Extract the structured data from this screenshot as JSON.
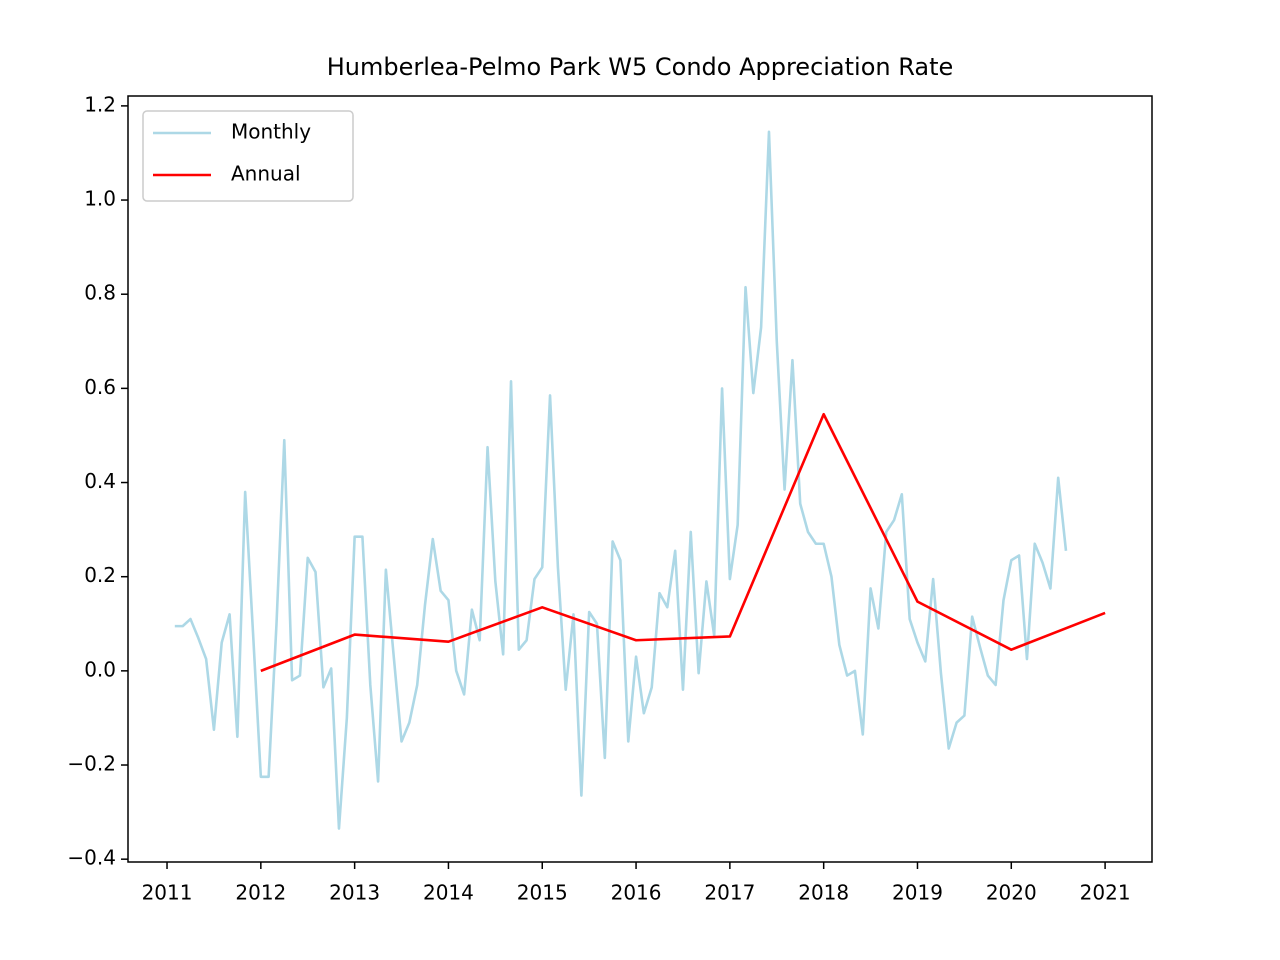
{
  "chart_data": {
    "type": "line",
    "title": "Humberlea-Pelmo Park W5 Condo Appreciation Rate",
    "legend": "upper left",
    "xlim": [
      2010.584,
      2021.5
    ],
    "xticks": [
      2011,
      2012,
      2013,
      2014,
      2015,
      2016,
      2017,
      2018,
      2019,
      2020,
      2021
    ],
    "ylim": [
      -0.406,
      1.221
    ],
    "yticks": [
      {
        "value": -0.4,
        "label": "−0.4"
      },
      {
        "value": -0.2,
        "label": "−0.2"
      },
      {
        "value": 0,
        "label": "0.0"
      },
      0.2,
      0.4,
      0.6,
      0.8,
      {
        "value": 1,
        "label": "1.0"
      },
      1.2
    ],
    "series": [
      {
        "name": "Monthly",
        "color": "#add8e6",
        "x": [
          2011.083,
          2011.167,
          2011.25,
          2011.333,
          2011.417,
          2011.5,
          2011.583,
          2011.667,
          2011.75,
          2011.833,
          2011.917,
          2012,
          2012.083,
          2012.167,
          2012.25,
          2012.333,
          2012.417,
          2012.5,
          2012.583,
          2012.667,
          2012.75,
          2012.833,
          2012.917,
          2013,
          2013.083,
          2013.167,
          2013.25,
          2013.333,
          2013.417,
          2013.5,
          2013.583,
          2013.667,
          2013.75,
          2013.833,
          2013.917,
          2014,
          2014.083,
          2014.167,
          2014.25,
          2014.333,
          2014.417,
          2014.5,
          2014.583,
          2014.667,
          2014.75,
          2014.833,
          2014.917,
          2015,
          2015.083,
          2015.167,
          2015.25,
          2015.333,
          2015.417,
          2015.5,
          2015.583,
          2015.667,
          2015.75,
          2015.833,
          2015.917,
          2016,
          2016.083,
          2016.167,
          2016.25,
          2016.333,
          2016.417,
          2016.5,
          2016.583,
          2016.667,
          2016.75,
          2016.833,
          2016.917,
          2017,
          2017.083,
          2017.167,
          2017.25,
          2017.333,
          2017.417,
          2017.5,
          2017.583,
          2017.667,
          2017.75,
          2017.833,
          2017.917,
          2018,
          2018.083,
          2018.167,
          2018.25,
          2018.333,
          2018.417,
          2018.5,
          2018.583,
          2018.667,
          2018.75,
          2018.833,
          2018.917,
          2019,
          2019.083,
          2019.167,
          2019.25,
          2019.333,
          2019.417,
          2019.5,
          2019.583,
          2019.667,
          2019.75,
          2019.833,
          2019.917,
          2020,
          2020.083,
          2020.167,
          2020.25,
          2020.333,
          2020.417,
          2020.5,
          2020.583
        ],
        "values": [
          0.095,
          0.095,
          0.11,
          0.07,
          0.025,
          -0.125,
          0.06,
          0.12,
          -0.14,
          0.38,
          0.08,
          -0.225,
          -0.225,
          0.1,
          0.49,
          -0.02,
          -0.01,
          0.24,
          0.21,
          -0.035,
          0.005,
          -0.335,
          -0.1,
          0.285,
          0.285,
          -0.03,
          -0.235,
          0.215,
          0.03,
          -0.15,
          -0.11,
          -0.03,
          0.14,
          0.28,
          0.17,
          0.15,
          0.0,
          -0.05,
          0.13,
          0.065,
          0.475,
          0.19,
          0.035,
          0.615,
          0.045,
          0.065,
          0.195,
          0.22,
          0.585,
          0.22,
          -0.04,
          0.12,
          -0.265,
          0.125,
          0.1,
          -0.185,
          0.275,
          0.235,
          -0.15,
          0.03,
          -0.09,
          -0.035,
          0.165,
          0.135,
          0.255,
          -0.04,
          0.295,
          -0.005,
          0.19,
          0.075,
          0.6,
          0.195,
          0.31,
          0.815,
          0.59,
          0.73,
          1.145,
          0.7,
          0.385,
          0.66,
          0.355,
          0.295,
          0.27,
          0.27,
          0.2,
          0.055,
          -0.01,
          0.0,
          -0.135,
          0.175,
          0.09,
          0.295,
          0.32,
          0.375,
          0.11,
          0.06,
          0.02,
          0.195,
          -0.005,
          -0.165,
          -0.11,
          -0.095,
          0.115,
          0.05,
          -0.01,
          -0.03,
          0.15,
          0.235,
          0.245,
          0.025,
          0.27,
          0.23,
          0.175,
          0.41,
          0.255
        ]
      },
      {
        "name": "Annual",
        "color": "#ff0000",
        "x": [
          2012,
          2013,
          2014,
          2015,
          2016,
          2017,
          2018,
          2019,
          2020,
          2021
        ],
        "values": [
          0.0,
          0.077,
          0.062,
          0.135,
          0.065,
          0.073,
          0.545,
          0.147,
          0.045,
          0.123
        ]
      }
    ]
  }
}
